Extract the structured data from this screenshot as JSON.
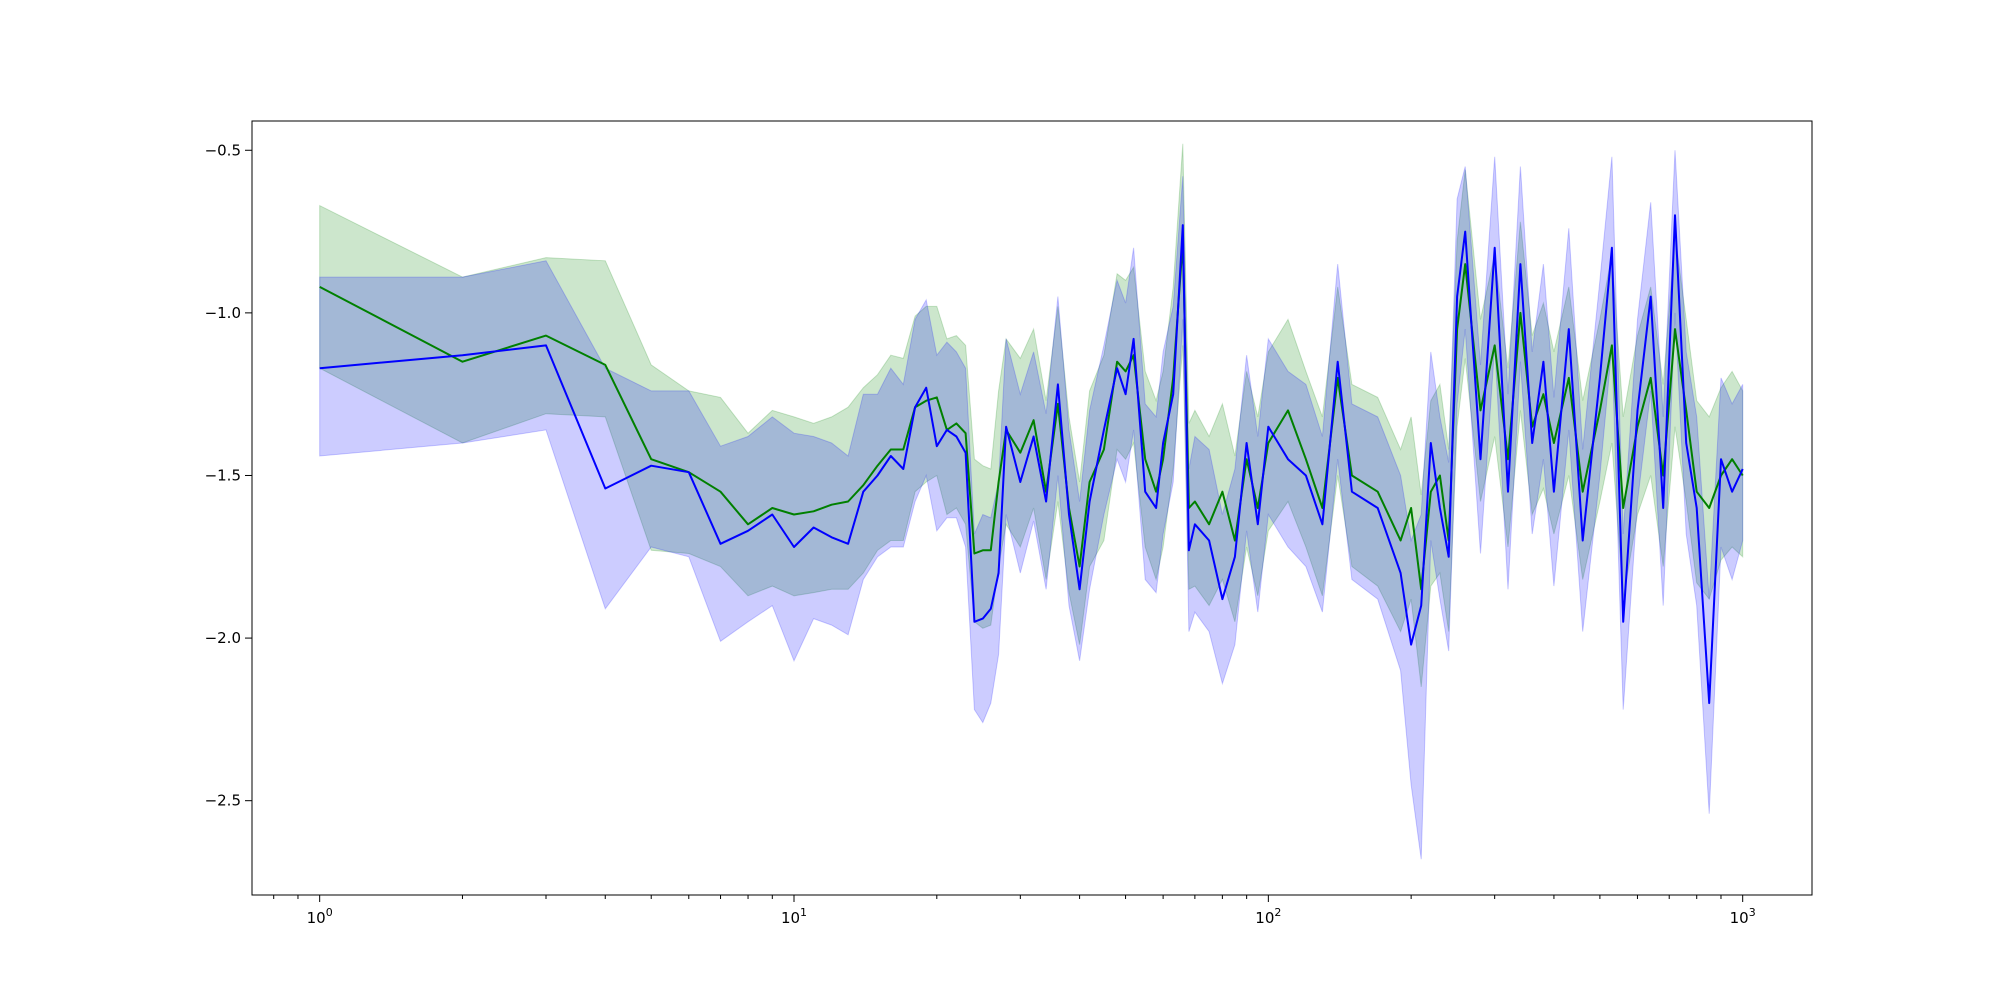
{
  "chart_data": {
    "type": "line",
    "title": "",
    "xlabel": "",
    "ylabel": "",
    "xscale": "log",
    "xlim": [
      0.72,
      1400
    ],
    "ylim": [
      -2.79,
      -0.41
    ],
    "grid": false,
    "legend": "none",
    "x_ticks": [
      {
        "value": 1,
        "base": "10",
        "exp": "0"
      },
      {
        "value": 10,
        "base": "10",
        "exp": "1"
      },
      {
        "value": 100,
        "base": "10",
        "exp": "2"
      },
      {
        "value": 1000,
        "base": "10",
        "exp": "3"
      }
    ],
    "y_ticks": [
      {
        "value": -0.5,
        "label": "−0.5"
      },
      {
        "value": -1.0,
        "label": "−1.0"
      },
      {
        "value": -1.5,
        "label": "−1.5"
      },
      {
        "value": -2.0,
        "label": "−2.0"
      },
      {
        "value": -2.5,
        "label": "−2.5"
      }
    ],
    "series": [
      {
        "color": "#008000",
        "band_color": "#008000",
        "band_opacity": 0.2,
        "x": [
          1,
          2,
          3,
          4,
          5,
          6,
          7,
          8,
          9,
          10,
          11,
          12,
          13,
          14,
          15,
          16,
          17,
          18,
          19,
          20,
          21,
          22,
          23,
          24,
          25,
          26,
          27,
          28,
          30,
          32,
          34,
          36,
          38,
          40,
          42,
          45,
          48,
          50,
          52,
          55,
          58,
          60,
          63,
          66,
          68,
          70,
          75,
          80,
          85,
          90,
          95,
          100,
          110,
          120,
          130,
          140,
          150,
          170,
          190,
          200,
          210,
          220,
          230,
          240,
          250,
          260,
          280,
          300,
          320,
          340,
          360,
          380,
          400,
          430,
          460,
          500,
          530,
          560,
          600,
          640,
          680,
          720,
          760,
          800,
          850,
          900,
          950,
          1000
        ],
        "y": [
          -0.92,
          -1.15,
          -1.07,
          -1.16,
          -1.45,
          -1.49,
          -1.55,
          -1.65,
          -1.6,
          -1.62,
          -1.61,
          -1.59,
          -1.58,
          -1.53,
          -1.47,
          -1.42,
          -1.42,
          -1.29,
          -1.27,
          -1.26,
          -1.36,
          -1.34,
          -1.37,
          -1.74,
          -1.73,
          -1.73,
          -1.52,
          -1.36,
          -1.43,
          -1.33,
          -1.55,
          -1.28,
          -1.6,
          -1.78,
          -1.52,
          -1.42,
          -1.15,
          -1.18,
          -1.13,
          -1.45,
          -1.55,
          -1.45,
          -1.2,
          -0.78,
          -1.6,
          -1.58,
          -1.65,
          -1.55,
          -1.7,
          -1.45,
          -1.6,
          -1.4,
          -1.3,
          -1.45,
          -1.6,
          -1.2,
          -1.5,
          -1.55,
          -1.7,
          -1.6,
          -1.85,
          -1.55,
          -1.5,
          -1.7,
          -1.05,
          -0.85,
          -1.3,
          -1.1,
          -1.45,
          -1.0,
          -1.35,
          -1.25,
          -1.4,
          -1.2,
          -1.55,
          -1.3,
          -1.1,
          -1.6,
          -1.35,
          -1.2,
          -1.5,
          -1.05,
          -1.3,
          -1.55,
          -1.6,
          -1.5,
          -1.45,
          -1.5
        ],
        "lower": [
          -1.17,
          -1.4,
          -1.31,
          -1.32,
          -1.73,
          -1.74,
          -1.78,
          -1.87,
          -1.84,
          -1.87,
          -1.86,
          -1.85,
          -1.85,
          -1.8,
          -1.73,
          -1.7,
          -1.7,
          -1.55,
          -1.52,
          -1.5,
          -1.62,
          -1.6,
          -1.65,
          -1.95,
          -1.97,
          -1.96,
          -1.78,
          -1.65,
          -1.72,
          -1.6,
          -1.82,
          -1.58,
          -1.86,
          -2.02,
          -1.78,
          -1.7,
          -1.42,
          -1.45,
          -1.4,
          -1.72,
          -1.82,
          -1.72,
          -1.48,
          -1.1,
          -1.85,
          -1.84,
          -1.9,
          -1.82,
          -1.95,
          -1.72,
          -1.87,
          -1.67,
          -1.58,
          -1.72,
          -1.87,
          -1.5,
          -1.78,
          -1.84,
          -1.98,
          -1.88,
          -2.15,
          -1.84,
          -1.8,
          -1.98,
          -1.35,
          -1.14,
          -1.58,
          -1.38,
          -1.72,
          -1.3,
          -1.62,
          -1.54,
          -1.68,
          -1.5,
          -1.82,
          -1.58,
          -1.4,
          -1.88,
          -1.62,
          -1.5,
          -1.78,
          -1.35,
          -1.58,
          -1.83,
          -1.88,
          -1.76,
          -1.72,
          -1.75
        ],
        "upper": [
          -0.67,
          -0.89,
          -0.83,
          -0.84,
          -1.16,
          -1.24,
          -1.26,
          -1.37,
          -1.3,
          -1.32,
          -1.34,
          -1.32,
          -1.29,
          -1.23,
          -1.19,
          -1.13,
          -1.14,
          -1.01,
          -0.98,
          -0.98,
          -1.08,
          -1.07,
          -1.1,
          -1.45,
          -1.47,
          -1.48,
          -1.24,
          -1.08,
          -1.14,
          -1.05,
          -1.27,
          -0.98,
          -1.32,
          -1.52,
          -1.24,
          -1.13,
          -0.88,
          -0.9,
          -0.86,
          -1.18,
          -1.27,
          -1.18,
          -0.92,
          -0.48,
          -1.34,
          -1.3,
          -1.38,
          -1.28,
          -1.44,
          -1.18,
          -1.32,
          -1.12,
          -1.02,
          -1.18,
          -1.32,
          -0.92,
          -1.22,
          -1.26,
          -1.42,
          -1.32,
          -1.56,
          -1.27,
          -1.22,
          -1.42,
          -0.78,
          -0.56,
          -1.02,
          -0.82,
          -1.17,
          -0.72,
          -1.07,
          -0.97,
          -1.12,
          -0.92,
          -1.27,
          -1.02,
          -0.82,
          -1.32,
          -1.07,
          -0.92,
          -1.22,
          -0.76,
          -1.02,
          -1.27,
          -1.32,
          -1.23,
          -1.18,
          -1.24
        ]
      },
      {
        "color": "#0000ff",
        "band_color": "#0000ff",
        "band_opacity": 0.2,
        "x": [
          1,
          2,
          3,
          4,
          5,
          6,
          7,
          8,
          9,
          10,
          11,
          12,
          13,
          14,
          15,
          16,
          17,
          18,
          19,
          20,
          21,
          22,
          23,
          24,
          25,
          26,
          27,
          28,
          30,
          32,
          34,
          36,
          38,
          40,
          42,
          45,
          48,
          50,
          52,
          55,
          58,
          60,
          63,
          66,
          68,
          70,
          75,
          80,
          85,
          90,
          95,
          100,
          110,
          120,
          130,
          140,
          150,
          170,
          190,
          200,
          210,
          220,
          230,
          240,
          250,
          260,
          280,
          300,
          320,
          340,
          360,
          380,
          400,
          430,
          460,
          500,
          530,
          560,
          600,
          640,
          680,
          720,
          760,
          800,
          850,
          900,
          950,
          1000
        ],
        "y": [
          -1.17,
          -1.13,
          -1.1,
          -1.54,
          -1.47,
          -1.49,
          -1.71,
          -1.67,
          -1.62,
          -1.72,
          -1.66,
          -1.69,
          -1.71,
          -1.55,
          -1.5,
          -1.44,
          -1.48,
          -1.29,
          -1.23,
          -1.41,
          -1.36,
          -1.38,
          -1.43,
          -1.95,
          -1.94,
          -1.91,
          -1.8,
          -1.35,
          -1.52,
          -1.38,
          -1.58,
          -1.22,
          -1.62,
          -1.85,
          -1.58,
          -1.36,
          -1.17,
          -1.25,
          -1.08,
          -1.55,
          -1.6,
          -1.4,
          -1.25,
          -0.73,
          -1.73,
          -1.65,
          -1.7,
          -1.88,
          -1.75,
          -1.4,
          -1.65,
          -1.35,
          -1.45,
          -1.5,
          -1.65,
          -1.15,
          -1.55,
          -1.6,
          -1.8,
          -2.02,
          -1.9,
          -1.4,
          -1.6,
          -1.75,
          -0.95,
          -0.75,
          -1.45,
          -0.8,
          -1.55,
          -0.85,
          -1.4,
          -1.15,
          -1.55,
          -1.05,
          -1.7,
          -1.2,
          -0.8,
          -1.95,
          -1.3,
          -0.95,
          -1.6,
          -0.7,
          -1.4,
          -1.6,
          -2.2,
          -1.45,
          -1.55,
          -1.48
        ],
        "lower": [
          -1.44,
          -1.4,
          -1.36,
          -1.91,
          -1.72,
          -1.75,
          -2.01,
          -1.95,
          -1.9,
          -2.07,
          -1.94,
          -1.96,
          -1.99,
          -1.82,
          -1.75,
          -1.72,
          -1.72,
          -1.58,
          -1.5,
          -1.67,
          -1.63,
          -1.63,
          -1.72,
          -2.22,
          -2.26,
          -2.2,
          -2.05,
          -1.62,
          -1.8,
          -1.64,
          -1.85,
          -1.5,
          -1.9,
          -2.07,
          -1.85,
          -1.62,
          -1.45,
          -1.52,
          -1.36,
          -1.82,
          -1.86,
          -1.68,
          -1.52,
          -1.02,
          -1.98,
          -1.92,
          -1.98,
          -2.14,
          -2.02,
          -1.67,
          -1.92,
          -1.62,
          -1.72,
          -1.78,
          -1.92,
          -1.45,
          -1.82,
          -1.88,
          -2.1,
          -2.45,
          -2.68,
          -1.7,
          -1.88,
          -2.04,
          -1.28,
          -1.05,
          -1.74,
          -1.1,
          -1.85,
          -1.15,
          -1.68,
          -1.45,
          -1.84,
          -1.36,
          -1.98,
          -1.5,
          -1.1,
          -2.22,
          -1.58,
          -1.24,
          -1.9,
          -1.0,
          -1.68,
          -1.9,
          -2.54,
          -1.72,
          -1.82,
          -1.7
        ],
        "upper": [
          -0.89,
          -0.89,
          -0.84,
          -1.17,
          -1.24,
          -1.24,
          -1.41,
          -1.38,
          -1.32,
          -1.37,
          -1.38,
          -1.4,
          -1.44,
          -1.25,
          -1.25,
          -1.17,
          -1.22,
          -1.02,
          -0.96,
          -1.13,
          -1.09,
          -1.12,
          -1.17,
          -1.68,
          -1.62,
          -1.63,
          -1.52,
          -1.08,
          -1.25,
          -1.12,
          -1.31,
          -0.95,
          -1.36,
          -1.58,
          -1.3,
          -1.1,
          -0.9,
          -0.97,
          -0.8,
          -1.28,
          -1.32,
          -1.12,
          -0.98,
          -0.58,
          -1.48,
          -1.38,
          -1.42,
          -1.62,
          -1.48,
          -1.13,
          -1.38,
          -1.08,
          -1.18,
          -1.22,
          -1.38,
          -0.85,
          -1.28,
          -1.32,
          -1.5,
          -1.7,
          -1.62,
          -1.12,
          -1.32,
          -1.46,
          -0.65,
          -0.55,
          -1.16,
          -0.52,
          -1.25,
          -0.55,
          -1.12,
          -0.85,
          -1.26,
          -0.74,
          -1.42,
          -0.9,
          -0.52,
          -1.68,
          -1.02,
          -0.66,
          -1.32,
          -0.5,
          -1.12,
          -1.32,
          -1.88,
          -1.2,
          -1.28,
          -1.22
        ]
      }
    ]
  }
}
